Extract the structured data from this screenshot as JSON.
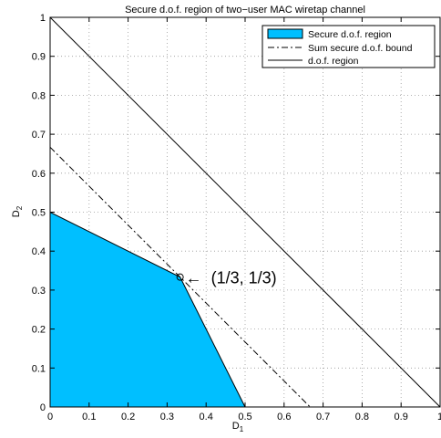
{
  "chart_data": {
    "type": "area",
    "title": "Secure d.o.f. region of two−user MAC wiretap channel",
    "xlabel": "D",
    "xlabel_sub": "1",
    "ylabel": "D",
    "ylabel_sub": "2",
    "xlim": [
      0,
      1
    ],
    "ylim": [
      0,
      1
    ],
    "x_ticks": [
      0,
      0.1,
      0.2,
      0.3,
      0.4,
      0.5,
      0.6,
      0.7,
      0.8,
      0.9,
      1
    ],
    "x_tick_labels": [
      "0",
      "0.1",
      "0.2",
      "0.3",
      "0.4",
      "0.5",
      "0.6",
      "0.7",
      "0.8",
      "0.9",
      "1"
    ],
    "y_ticks": [
      0,
      0.1,
      0.2,
      0.3,
      0.4,
      0.5,
      0.6,
      0.7,
      0.8,
      0.9,
      1
    ],
    "y_tick_labels": [
      "0",
      "0.1",
      "0.2",
      "0.3",
      "0.4",
      "0.5",
      "0.6",
      "0.7",
      "0.8",
      "0.9",
      "1"
    ],
    "grid": true,
    "legend_position": "top-right",
    "series": [
      {
        "name": "Secure d.o.f. region",
        "kind": "filled-polygon",
        "color": "#00bfff",
        "points": [
          [
            0,
            0
          ],
          [
            0,
            0.5
          ],
          [
            0.3333,
            0.3333
          ],
          [
            0.5,
            0
          ],
          [
            0,
            0
          ]
        ]
      },
      {
        "name": "Sum secure d.o.f. bound",
        "kind": "dash-dot-line",
        "color": "#000000",
        "points": [
          [
            0,
            0.6667
          ],
          [
            0.6667,
            0
          ]
        ]
      },
      {
        "name": "d.o.f. region",
        "kind": "solid-line",
        "color": "#000000",
        "points": [
          [
            0,
            1
          ],
          [
            1,
            0
          ]
        ]
      }
    ],
    "annotations": [
      {
        "text": "(1/3, 1/3)",
        "x": 0.3333,
        "y": 0.3333,
        "marker": "circle",
        "arrow": "←"
      }
    ]
  }
}
